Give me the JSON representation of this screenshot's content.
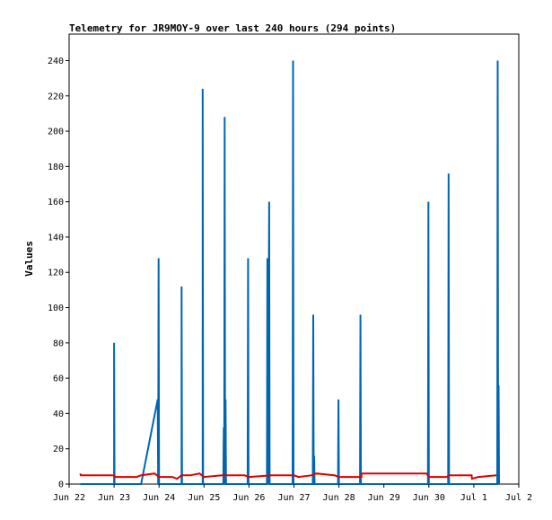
{
  "chart_data": {
    "type": "line",
    "title": "Telemetry for JR9MOY-9 over last 240 hours (294 points)",
    "xlabel": "",
    "ylabel": "Values",
    "ylim": [
      0,
      255
    ],
    "xlim": [
      0,
      10
    ],
    "x_ticks": [
      {
        "x": 0,
        "label": "Jun 22"
      },
      {
        "x": 1,
        "label": "Jun 23"
      },
      {
        "x": 2,
        "label": "Jun 24"
      },
      {
        "x": 3,
        "label": "Jun 25"
      },
      {
        "x": 4,
        "label": "Jun 26"
      },
      {
        "x": 5,
        "label": "Jun 27"
      },
      {
        "x": 6,
        "label": "Jun 28"
      },
      {
        "x": 7,
        "label": "Jun 29"
      },
      {
        "x": 8,
        "label": "Jun 30"
      },
      {
        "x": 9,
        "label": "Jul 1"
      },
      {
        "x": 10,
        "label": "Jul 2"
      }
    ],
    "y_ticks": [
      0,
      20,
      40,
      60,
      80,
      100,
      120,
      140,
      160,
      180,
      200,
      220,
      240
    ],
    "grid": false,
    "series": [
      {
        "color": "#0066b3",
        "points": [
          [
            0.25,
            0
          ],
          [
            1.0,
            0
          ],
          [
            1.0,
            80
          ],
          [
            1.01,
            0
          ],
          [
            1.6,
            0
          ],
          [
            1.97,
            48
          ],
          [
            1.98,
            0
          ],
          [
            1.99,
            128
          ],
          [
            2.0,
            0
          ],
          [
            2.5,
            0
          ],
          [
            2.5,
            112
          ],
          [
            2.51,
            0
          ],
          [
            2.97,
            0
          ],
          [
            2.97,
            224
          ],
          [
            2.98,
            0
          ],
          [
            3.43,
            0
          ],
          [
            3.44,
            32
          ],
          [
            3.45,
            0
          ],
          [
            3.46,
            208
          ],
          [
            3.47,
            0
          ],
          [
            3.48,
            48
          ],
          [
            3.49,
            0
          ],
          [
            3.97,
            0
          ],
          [
            3.98,
            128
          ],
          [
            3.99,
            0
          ],
          [
            4.4,
            0
          ],
          [
            4.41,
            128
          ],
          [
            4.42,
            0
          ],
          [
            4.45,
            160
          ],
          [
            4.46,
            0
          ],
          [
            4.97,
            0
          ],
          [
            4.98,
            240
          ],
          [
            4.99,
            0
          ],
          [
            5.42,
            0
          ],
          [
            5.43,
            96
          ],
          [
            5.44,
            0
          ],
          [
            5.45,
            16
          ],
          [
            5.46,
            0
          ],
          [
            5.98,
            0
          ],
          [
            5.99,
            48
          ],
          [
            6.0,
            0
          ],
          [
            6.47,
            0
          ],
          [
            6.48,
            96
          ],
          [
            6.49,
            0
          ],
          [
            7.98,
            0
          ],
          [
            7.99,
            160
          ],
          [
            8.0,
            0
          ],
          [
            8.43,
            0
          ],
          [
            8.44,
            176
          ],
          [
            8.45,
            0
          ],
          [
            9.52,
            0
          ],
          [
            9.53,
            240
          ],
          [
            9.54,
            0
          ],
          [
            9.55,
            56
          ],
          [
            9.56,
            0
          ]
        ]
      },
      {
        "color": "#dd0000",
        "points": [
          [
            0.25,
            6
          ],
          [
            0.26,
            5
          ],
          [
            1.0,
            5
          ],
          [
            1.01,
            4
          ],
          [
            1.5,
            4
          ],
          [
            1.6,
            5
          ],
          [
            1.9,
            6
          ],
          [
            2.0,
            4
          ],
          [
            2.3,
            4
          ],
          [
            2.4,
            3
          ],
          [
            2.5,
            5
          ],
          [
            2.7,
            5
          ],
          [
            2.9,
            6
          ],
          [
            3.0,
            4
          ],
          [
            3.4,
            5
          ],
          [
            3.9,
            5
          ],
          [
            4.0,
            4
          ],
          [
            4.5,
            5
          ],
          [
            5.0,
            5
          ],
          [
            5.1,
            4
          ],
          [
            5.4,
            5
          ],
          [
            5.5,
            6
          ],
          [
            5.9,
            5
          ],
          [
            6.0,
            4
          ],
          [
            6.5,
            4
          ],
          [
            6.5,
            6
          ],
          [
            7.95,
            6
          ],
          [
            8.0,
            4
          ],
          [
            8.4,
            4
          ],
          [
            8.45,
            5
          ],
          [
            8.95,
            5
          ],
          [
            8.96,
            3
          ],
          [
            9.1,
            4
          ],
          [
            9.5,
            5
          ]
        ]
      }
    ]
  }
}
